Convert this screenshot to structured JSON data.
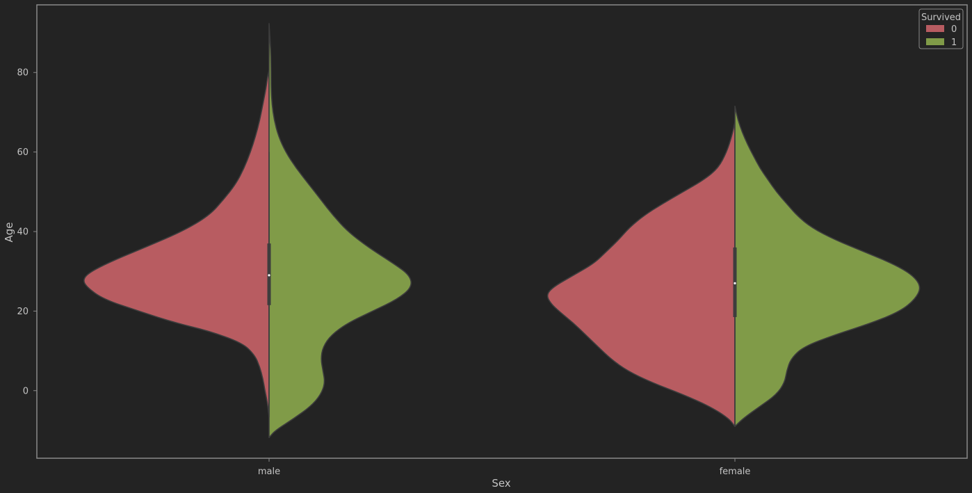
{
  "chart_data": {
    "type": "violin",
    "split": true,
    "title": "",
    "xlabel": "Sex",
    "ylabel": "Age",
    "categories": [
      "male",
      "female"
    ],
    "yticks": [
      0,
      20,
      40,
      60,
      80
    ],
    "ylim": [
      -17,
      97
    ],
    "legend": {
      "title": "Survived",
      "placement": "top-right",
      "entries": [
        {
          "label": "0",
          "color": "#b85c61"
        },
        {
          "label": "1",
          "color": "#809b48"
        }
      ]
    },
    "colors": {
      "background": "#232323",
      "frame": "#8a8a8a",
      "violin_edge": "#3d3d3d",
      "box": "#3d3d3d",
      "median": "#ffffff",
      "text": "#c4c4c4"
    },
    "violins": [
      {
        "category": "male",
        "hue": "0",
        "side": "left",
        "profile": [
          {
            "age": -6.7,
            "width": 0
          },
          {
            "age": -3,
            "width": 0.008
          },
          {
            "age": 0,
            "width": 0.02
          },
          {
            "age": 3,
            "width": 0.03
          },
          {
            "age": 6,
            "width": 0.045
          },
          {
            "age": 9,
            "width": 0.07
          },
          {
            "age": 12,
            "width": 0.13
          },
          {
            "age": 15,
            "width": 0.29
          },
          {
            "age": 17,
            "width": 0.45
          },
          {
            "age": 20,
            "width": 0.63
          },
          {
            "age": 23,
            "width": 0.8
          },
          {
            "age": 26,
            "width": 0.88
          },
          {
            "age": 28,
            "width": 0.9
          },
          {
            "age": 30,
            "width": 0.86
          },
          {
            "age": 33,
            "width": 0.74
          },
          {
            "age": 36,
            "width": 0.6
          },
          {
            "age": 40,
            "width": 0.42
          },
          {
            "age": 44,
            "width": 0.29
          },
          {
            "age": 48,
            "width": 0.22
          },
          {
            "age": 52,
            "width": 0.16
          },
          {
            "age": 56,
            "width": 0.12
          },
          {
            "age": 60,
            "width": 0.09
          },
          {
            "age": 64,
            "width": 0.065
          },
          {
            "age": 68,
            "width": 0.045
          },
          {
            "age": 72,
            "width": 0.03
          },
          {
            "age": 76,
            "width": 0.015
          },
          {
            "age": 79,
            "width": 0.007
          },
          {
            "age": 80.5,
            "width": 0
          }
        ]
      },
      {
        "category": "male",
        "hue": "1",
        "side": "right",
        "profile": [
          {
            "age": -11.8,
            "width": 0
          },
          {
            "age": -10,
            "width": 0.03
          },
          {
            "age": -7,
            "width": 0.12
          },
          {
            "age": -4,
            "width": 0.2
          },
          {
            "age": -1,
            "width": 0.25
          },
          {
            "age": 2,
            "width": 0.27
          },
          {
            "age": 5,
            "width": 0.26
          },
          {
            "age": 8,
            "width": 0.25
          },
          {
            "age": 11,
            "width": 0.26
          },
          {
            "age": 14,
            "width": 0.3
          },
          {
            "age": 17,
            "width": 0.38
          },
          {
            "age": 20,
            "width": 0.5
          },
          {
            "age": 23,
            "width": 0.62
          },
          {
            "age": 26,
            "width": 0.69
          },
          {
            "age": 29,
            "width": 0.68
          },
          {
            "age": 32,
            "width": 0.6
          },
          {
            "age": 36,
            "width": 0.48
          },
          {
            "age": 40,
            "width": 0.38
          },
          {
            "age": 44,
            "width": 0.31
          },
          {
            "age": 48,
            "width": 0.25
          },
          {
            "age": 52,
            "width": 0.19
          },
          {
            "age": 56,
            "width": 0.13
          },
          {
            "age": 60,
            "width": 0.08
          },
          {
            "age": 64,
            "width": 0.045
          },
          {
            "age": 68,
            "width": 0.025
          },
          {
            "age": 72,
            "width": 0.014
          },
          {
            "age": 76,
            "width": 0.01
          },
          {
            "age": 80,
            "width": 0.01
          },
          {
            "age": 84,
            "width": 0.009
          },
          {
            "age": 88,
            "width": 0.005
          },
          {
            "age": 92.3,
            "width": 0
          }
        ]
      },
      {
        "category": "female",
        "hue": "0",
        "side": "left",
        "profile": [
          {
            "age": -9,
            "width": 0
          },
          {
            "age": -7,
            "width": 0.03
          },
          {
            "age": -4,
            "width": 0.12
          },
          {
            "age": -1,
            "width": 0.25
          },
          {
            "age": 2,
            "width": 0.4
          },
          {
            "age": 5,
            "width": 0.52
          },
          {
            "age": 8,
            "width": 0.6
          },
          {
            "age": 11,
            "width": 0.66
          },
          {
            "age": 14,
            "width": 0.72
          },
          {
            "age": 17,
            "width": 0.78
          },
          {
            "age": 20,
            "width": 0.85
          },
          {
            "age": 22,
            "width": 0.89
          },
          {
            "age": 24,
            "width": 0.91
          },
          {
            "age": 26,
            "width": 0.88
          },
          {
            "age": 29,
            "width": 0.78
          },
          {
            "age": 32,
            "width": 0.68
          },
          {
            "age": 35,
            "width": 0.62
          },
          {
            "age": 38,
            "width": 0.56
          },
          {
            "age": 41,
            "width": 0.51
          },
          {
            "age": 44,
            "width": 0.44
          },
          {
            "age": 47,
            "width": 0.35
          },
          {
            "age": 50,
            "width": 0.25
          },
          {
            "age": 53,
            "width": 0.15
          },
          {
            "age": 56,
            "width": 0.08
          },
          {
            "age": 60,
            "width": 0.04
          },
          {
            "age": 64,
            "width": 0.015
          },
          {
            "age": 67.5,
            "width": 0
          }
        ]
      },
      {
        "category": "female",
        "hue": "1",
        "side": "right",
        "profile": [
          {
            "age": -9,
            "width": 0
          },
          {
            "age": -7,
            "width": 0.04
          },
          {
            "age": -4,
            "width": 0.12
          },
          {
            "age": -1,
            "width": 0.2
          },
          {
            "age": 2,
            "width": 0.24
          },
          {
            "age": 5,
            "width": 0.25
          },
          {
            "age": 8,
            "width": 0.27
          },
          {
            "age": 11,
            "width": 0.33
          },
          {
            "age": 14,
            "width": 0.48
          },
          {
            "age": 17,
            "width": 0.66
          },
          {
            "age": 20,
            "width": 0.8
          },
          {
            "age": 23,
            "width": 0.87
          },
          {
            "age": 26,
            "width": 0.9
          },
          {
            "age": 29,
            "width": 0.86
          },
          {
            "age": 32,
            "width": 0.76
          },
          {
            "age": 35,
            "width": 0.62
          },
          {
            "age": 38,
            "width": 0.48
          },
          {
            "age": 41,
            "width": 0.37
          },
          {
            "age": 44,
            "width": 0.3
          },
          {
            "age": 47,
            "width": 0.25
          },
          {
            "age": 50,
            "width": 0.2
          },
          {
            "age": 53,
            "width": 0.16
          },
          {
            "age": 56,
            "width": 0.12
          },
          {
            "age": 59,
            "width": 0.09
          },
          {
            "age": 62,
            "width": 0.06
          },
          {
            "age": 65,
            "width": 0.035
          },
          {
            "age": 68,
            "width": 0.015
          },
          {
            "age": 71.5,
            "width": 0
          }
        ]
      }
    ],
    "boxes": [
      {
        "category": "male",
        "q1": 21.5,
        "q3": 37,
        "whisker_low": -6.7,
        "whisker_high": 60,
        "median": 29
      },
      {
        "category": "female",
        "q1": 18.5,
        "q3": 36,
        "whisker_low": -9,
        "whisker_high": 63,
        "median": 27
      }
    ]
  }
}
